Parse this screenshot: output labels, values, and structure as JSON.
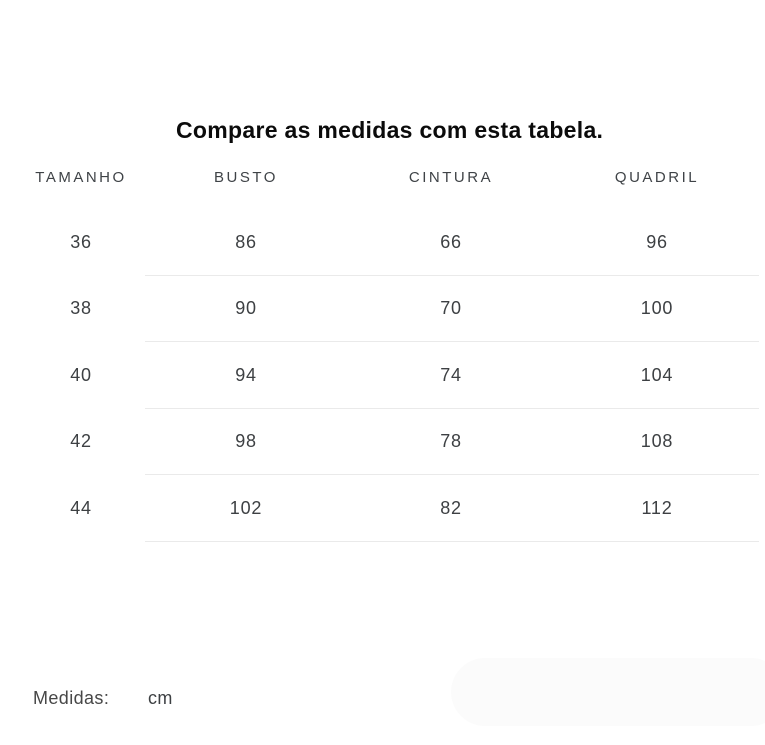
{
  "title": "Compare as medidas com esta tabela.",
  "table": {
    "columns": [
      "TAMANHO",
      "BUSTO",
      "CINTURA",
      "QUADRIL"
    ],
    "rows": [
      [
        "36",
        "86",
        "66",
        "96"
      ],
      [
        "38",
        "90",
        "70",
        "100"
      ],
      [
        "40",
        "94",
        "74",
        "104"
      ],
      [
        "42",
        "98",
        "78",
        "108"
      ],
      [
        "44",
        "102",
        "82",
        "112"
      ]
    ]
  },
  "footer": {
    "label": "Medidas:",
    "unit": "cm"
  },
  "colors": {
    "background": "#ffffff",
    "title_text": "#0b0b0b",
    "body_text": "#3d4043",
    "header_text": "#3f4347",
    "divider": "#eaeaea",
    "pill": "#fbfbfb"
  },
  "chart_data": {
    "type": "table",
    "title": "Compare as medidas com esta tabela.",
    "columns": [
      "TAMANHO",
      "BUSTO",
      "CINTURA",
      "QUADRIL"
    ],
    "rows": [
      [
        36,
        86,
        66,
        96
      ],
      [
        38,
        90,
        70,
        100
      ],
      [
        40,
        94,
        74,
        104
      ],
      [
        42,
        98,
        78,
        108
      ],
      [
        44,
        102,
        82,
        112
      ]
    ],
    "unit": "cm",
    "notes": "Size chart: sizes 36-44; bust/waist/hip measurements in centimeters; light horizontal rules separate rows starting after the size column"
  }
}
